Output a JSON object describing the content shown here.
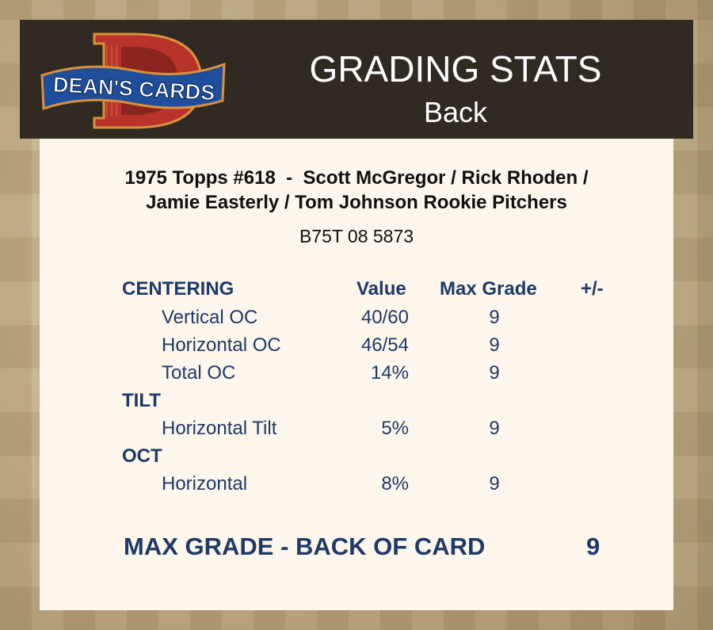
{
  "header": {
    "logo_text": "DEAN'S CARDS",
    "logo_letter": "D",
    "title": "GRADING STATS",
    "subtitle": "Back"
  },
  "card": {
    "title_line1": "1975 Topps #618  -  Scott McGregor / Rick Rhoden /",
    "title_line2": "Jamie Easterly / Tom Johnson Rookie Pitchers",
    "cert_number": "B75T 08 5873"
  },
  "columns": {
    "category": "CENTERING",
    "value": "Value",
    "max_grade": "Max Grade",
    "plus_minus": "+/-"
  },
  "sections": {
    "centering": {
      "rows": [
        {
          "label": "Vertical OC",
          "value": "40/60",
          "max_grade": "9"
        },
        {
          "label": "Horizontal OC",
          "value": "46/54",
          "max_grade": "9"
        },
        {
          "label": "Total OC",
          "value": "14%",
          "max_grade": "9"
        }
      ]
    },
    "tilt": {
      "label": "TILT",
      "rows": [
        {
          "label": "Horizontal Tilt",
          "value": "5%",
          "max_grade": "9"
        }
      ]
    },
    "oct": {
      "label": "OCT",
      "rows": [
        {
          "label": "Horizontal",
          "value": "8%",
          "max_grade": "9"
        }
      ]
    }
  },
  "summary": {
    "label": "MAX GRADE - BACK OF CARD",
    "value": "9"
  },
  "colors": {
    "header_bg": "#302a22",
    "panel_bg": "#fcf6ec",
    "stat_text": "#1f3a66",
    "logo_red": "#b8332a",
    "logo_blue": "#1f4e9c"
  }
}
